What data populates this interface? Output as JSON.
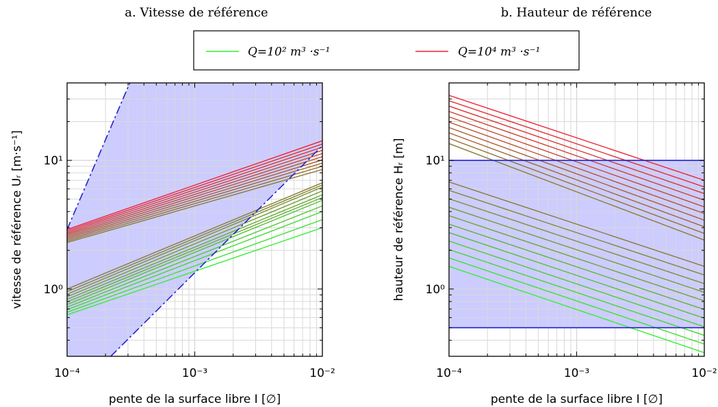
{
  "titles": {
    "left": "a. Vitesse de référence",
    "right": "b. Hauteur de référence"
  },
  "legend": {
    "items": [
      {
        "label": "Q=10² m³ ·s⁻¹",
        "color": "#33ee33"
      },
      {
        "label": "Q=10⁴ m³ ·s⁻¹",
        "color": "#ee2233"
      }
    ]
  },
  "colors": {
    "fill": "#ccccff",
    "blue": "#2222cc",
    "grid": "#d8d8d8"
  },
  "chart_data": [
    {
      "type": "line",
      "title": "a. Vitesse de référence",
      "xlabel": "pente de la surface libre I [∅]",
      "ylabel": "vitesse de référence Uᵣ [m·s⁻¹]",
      "xscale": "log",
      "yscale": "log",
      "xlim": [
        0.0001,
        0.01
      ],
      "ylim": [
        0.3,
        40
      ],
      "xticks": [
        {
          "v": 0.0001,
          "label": "10⁻⁴"
        },
        {
          "v": 0.001,
          "label": "10⁻³"
        },
        {
          "v": 0.01,
          "label": "10⁻²"
        }
      ],
      "yticks": [
        {
          "v": 1,
          "label": "10⁰"
        },
        {
          "v": 10,
          "label": "10¹"
        }
      ],
      "grid": true,
      "shaded_region": {
        "upper": {
          "x": [
            0.0001,
            0.00031,
            0.01
          ],
          "y": [
            2.9,
            40,
            40
          ]
        },
        "lower": {
          "x": [
            0.0001,
            0.00022,
            0.01
          ],
          "y": [
            0.3,
            0.3,
            13
          ]
        }
      },
      "boundary_lines": [
        {
          "style": "dashdot",
          "color": "#2222cc",
          "x": [
            0.0001,
            0.00031
          ],
          "y": [
            2.9,
            40
          ]
        },
        {
          "style": "dashdot",
          "color": "#2222cc",
          "x": [
            0.00022,
            0.01
          ],
          "y": [
            0.3,
            13
          ]
        }
      ],
      "families": [
        {
          "x": [
            0.0001,
            0.01
          ],
          "start": [
            0.63,
            1.0
          ],
          "end": [
            3.0,
            4.0,
            4.9,
            5.4,
            6.2,
            6.7
          ],
          "count": 11,
          "color_from": "#33ee33",
          "color_to": "#8a7a33"
        },
        {
          "x": [
            0.0001,
            0.01
          ],
          "start": [
            2.3,
            2.9
          ],
          "end": [
            8.5,
            14.2
          ],
          "count": 10,
          "color_from": "#8a7a33",
          "color_to": "#ee2233"
        }
      ]
    },
    {
      "type": "line",
      "title": "b. Hauteur de référence",
      "xlabel": "pente de la surface libre I [∅]",
      "ylabel": "hauteur de référence Hᵣ [m]",
      "xscale": "log",
      "yscale": "log",
      "xlim": [
        0.0001,
        0.01
      ],
      "ylim": [
        0.3,
        40
      ],
      "xticks": [
        {
          "v": 0.0001,
          "label": "10⁻⁴"
        },
        {
          "v": 0.001,
          "label": "10⁻³"
        },
        {
          "v": 0.01,
          "label": "10⁻²"
        }
      ],
      "yticks": [
        {
          "v": 1,
          "label": "10⁰"
        },
        {
          "v": 10,
          "label": "10¹"
        }
      ],
      "grid": true,
      "shaded_region": {
        "ymin": 0.5,
        "ymax": 10
      },
      "boundary_lines": [
        {
          "style": "solid",
          "color": "#2222cc",
          "x": [
            0.0001,
            0.01
          ],
          "y": [
            10,
            10
          ]
        },
        {
          "style": "solid",
          "color": "#2222cc",
          "x": [
            0.0001,
            0.01
          ],
          "y": [
            0.5,
            0.5
          ]
        }
      ],
      "families": [
        {
          "x": [
            0.0001,
            0.01
          ],
          "start": [
            1.5,
            6.8
          ],
          "end": [
            0.32,
            1.5
          ],
          "count": 11,
          "color_from": "#33ee33",
          "color_to": "#8a7a33"
        },
        {
          "x": [
            0.0001,
            0.01
          ],
          "start": [
            13.5,
            32
          ],
          "end": [
            2.4,
            7.0
          ],
          "count": 10,
          "color_from": "#8a7a33",
          "color_to": "#ee2233"
        }
      ]
    }
  ]
}
